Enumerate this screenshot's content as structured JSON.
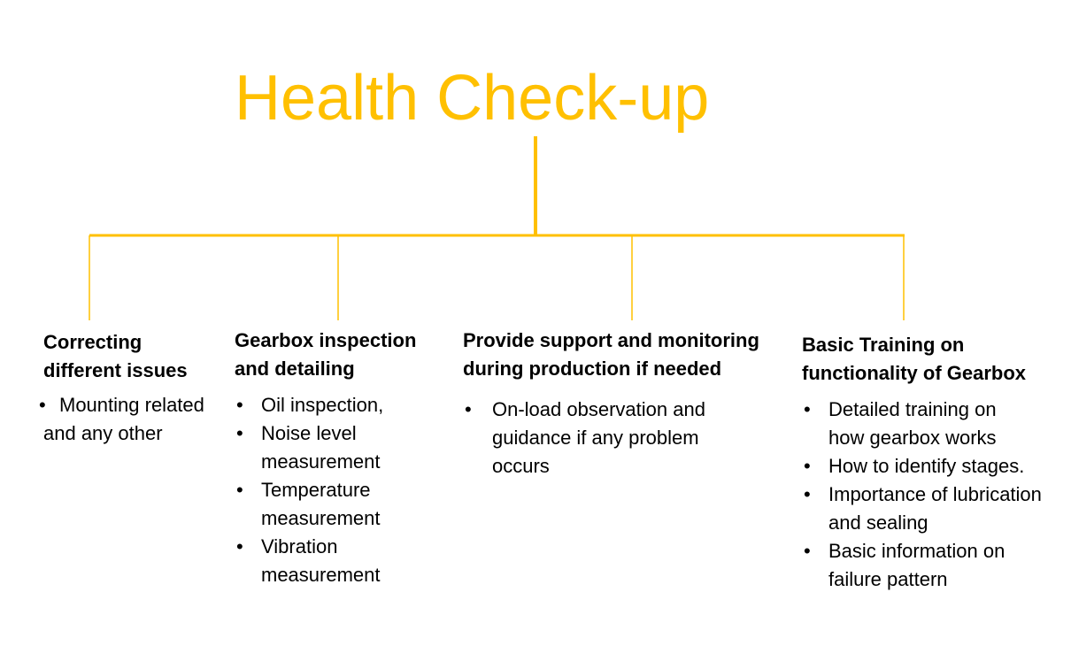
{
  "title": "Health Check-up",
  "colors": {
    "accent": "#FFC000",
    "text": "#000000",
    "background": "#FFFFFF"
  },
  "branches": [
    {
      "title_lines": [
        "Correcting",
        "different issues"
      ],
      "items": [
        "Mounting related"
      ],
      "continuation": "and any other"
    },
    {
      "title_lines": [
        "Gearbox inspection",
        "and detailing"
      ],
      "items": [
        "Oil inspection,",
        "Noise level measurement",
        "Temperature measurement",
        "Vibration measurement"
      ]
    },
    {
      "title_lines": [
        "Provide support and monitoring",
        "during production if needed"
      ],
      "items": [
        "On-load observation and guidance if any problem occurs"
      ]
    },
    {
      "title_lines": [
        "Basic Training on",
        "functionality of Gearbox"
      ],
      "items": [
        "Detailed training on how gearbox works",
        "How to identify stages.",
        "Importance of lubrication and sealing",
        "Basic information on failure pattern"
      ]
    }
  ]
}
